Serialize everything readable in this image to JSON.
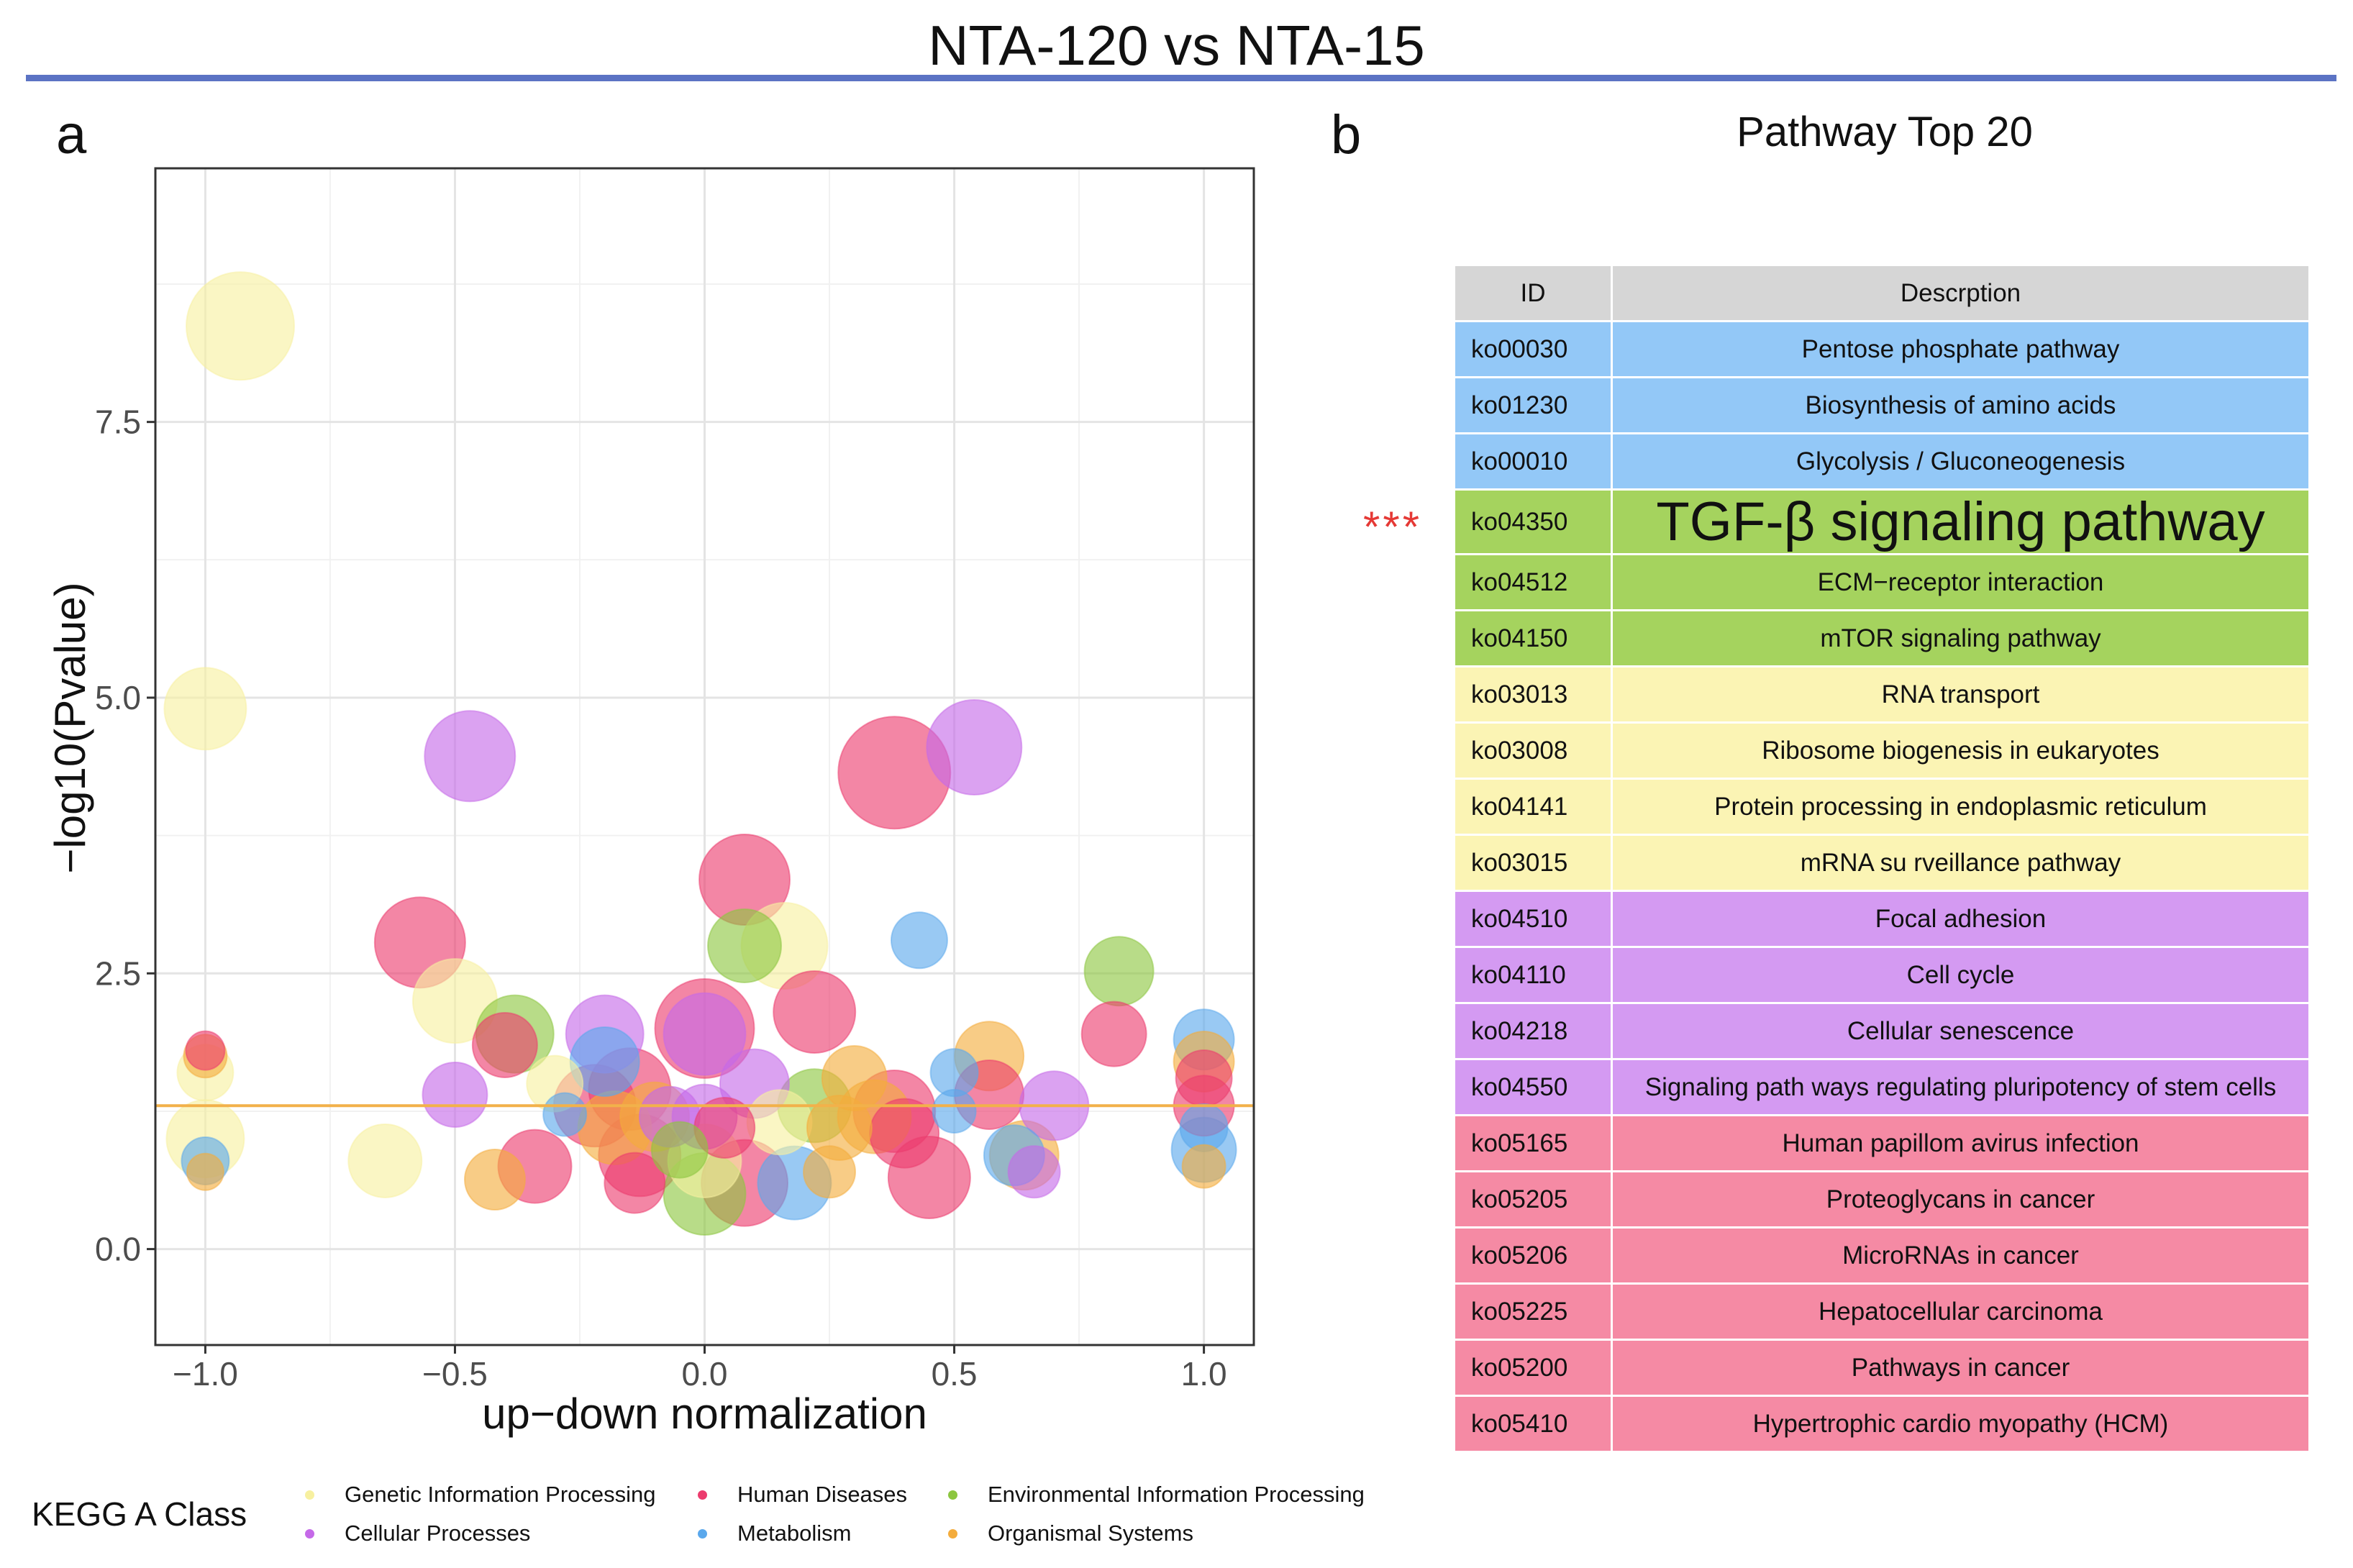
{
  "title": "NTA-120 vs NTA-15",
  "panel_a_label": "a",
  "panel_b_label": "b",
  "chart_data": {
    "type": "scatter",
    "xlabel": "up−down normalization",
    "ylabel": "−log10(Pvalue)",
    "xlim": [
      -1.1,
      1.1
    ],
    "ylim": [
      -0.87,
      9.8
    ],
    "x_ticks": [
      -1.0,
      -0.5,
      0.0,
      0.5,
      1.0
    ],
    "x_tick_labels": [
      "−1.0",
      "−0.5",
      "0.0",
      "0.5",
      "1.0"
    ],
    "y_ticks": [
      0.0,
      2.5,
      5.0,
      7.5
    ],
    "y_tick_labels": [
      "0.0",
      "2.5",
      "5.0",
      "7.5"
    ],
    "threshold_y": 1.3,
    "threshold_color": "#f2b14a",
    "grid": true,
    "class_colors": {
      "Genetic Information Processing": "#f7f0a0",
      "Human Diseases": "#ec3c6e",
      "Environmental Information Processing": "#8cc63f",
      "Cellular Processes": "#c569e8",
      "Metabolism": "#5aa8ec",
      "Organismal Systems": "#f4ac3c"
    },
    "points": [
      {
        "x": -0.93,
        "y": 8.37,
        "s": 5,
        "c": "Genetic Information Processing"
      },
      {
        "x": -1.0,
        "y": 4.9,
        "s": 3.8,
        "c": "Genetic Information Processing"
      },
      {
        "x": -1.0,
        "y": 1.0,
        "s": 3.6,
        "c": "Genetic Information Processing"
      },
      {
        "x": -1.0,
        "y": 1.6,
        "s": 2.6,
        "c": "Genetic Information Processing"
      },
      {
        "x": -1.0,
        "y": 1.8,
        "s": 1.8,
        "c": "Human Diseases"
      },
      {
        "x": -1.0,
        "y": 1.75,
        "s": 2.0,
        "c": "Organismal Systems"
      },
      {
        "x": -1.0,
        "y": 0.8,
        "s": 2.2,
        "c": "Metabolism"
      },
      {
        "x": -1.0,
        "y": 0.7,
        "s": 1.7,
        "c": "Organismal Systems"
      },
      {
        "x": -0.64,
        "y": 0.8,
        "s": 3.4,
        "c": "Genetic Information Processing"
      },
      {
        "x": -0.57,
        "y": 2.78,
        "s": 4.2,
        "c": "Human Diseases"
      },
      {
        "x": -0.5,
        "y": 2.25,
        "s": 3.9,
        "c": "Genetic Information Processing"
      },
      {
        "x": -0.47,
        "y": 4.47,
        "s": 4.2,
        "c": "Cellular Processes"
      },
      {
        "x": -0.5,
        "y": 1.4,
        "s": 3.0,
        "c": "Cellular Processes"
      },
      {
        "x": -0.42,
        "y": 0.63,
        "s": 2.8,
        "c": "Organismal Systems"
      },
      {
        "x": -0.38,
        "y": 1.95,
        "s": 3.6,
        "c": "Environmental Information Processing"
      },
      {
        "x": -0.4,
        "y": 1.85,
        "s": 3.0,
        "c": "Human Diseases"
      },
      {
        "x": -0.34,
        "y": 0.75,
        "s": 3.4,
        "c": "Human Diseases"
      },
      {
        "x": -0.3,
        "y": 1.5,
        "s": 2.6,
        "c": "Genetic Information Processing"
      },
      {
        "x": -0.28,
        "y": 1.22,
        "s": 2.0,
        "c": "Metabolism"
      },
      {
        "x": -0.22,
        "y": 1.3,
        "s": 3.8,
        "c": "Human Diseases"
      },
      {
        "x": -0.2,
        "y": 1.95,
        "s": 3.6,
        "c": "Cellular Processes"
      },
      {
        "x": -0.2,
        "y": 1.7,
        "s": 3.2,
        "c": "Metabolism"
      },
      {
        "x": -0.18,
        "y": 1.1,
        "s": 3.4,
        "c": "Organismal Systems"
      },
      {
        "x": -0.15,
        "y": 1.45,
        "s": 3.8,
        "c": "Human Diseases"
      },
      {
        "x": -0.13,
        "y": 0.85,
        "s": 3.8,
        "c": "Human Diseases"
      },
      {
        "x": -0.14,
        "y": 0.6,
        "s": 2.8,
        "c": "Human Diseases"
      },
      {
        "x": -0.1,
        "y": 1.2,
        "s": 3.2,
        "c": "Organismal Systems"
      },
      {
        "x": -0.07,
        "y": 1.2,
        "s": 2.8,
        "c": "Cellular Processes"
      },
      {
        "x": -0.05,
        "y": 0.9,
        "s": 2.6,
        "c": "Environmental Information Processing"
      },
      {
        "x": 0.0,
        "y": 2.0,
        "s": 4.6,
        "c": "Human Diseases"
      },
      {
        "x": 0.0,
        "y": 1.95,
        "s": 3.8,
        "c": "Cellular Processes"
      },
      {
        "x": 0.0,
        "y": 1.2,
        "s": 3.0,
        "c": "Cellular Processes"
      },
      {
        "x": 0.0,
        "y": 0.5,
        "s": 3.8,
        "c": "Environmental Information Processing"
      },
      {
        "x": 0.0,
        "y": 0.8,
        "s": 3.4,
        "c": "Genetic Information Processing"
      },
      {
        "x": 0.04,
        "y": 1.1,
        "s": 2.8,
        "c": "Human Diseases"
      },
      {
        "x": 0.08,
        "y": 3.35,
        "s": 4.2,
        "c": "Human Diseases"
      },
      {
        "x": 0.08,
        "y": 0.6,
        "s": 4.0,
        "c": "Human Diseases"
      },
      {
        "x": 0.1,
        "y": 1.5,
        "s": 3.2,
        "c": "Cellular Processes"
      },
      {
        "x": 0.08,
        "y": 2.75,
        "s": 3.4,
        "c": "Environmental Information Processing"
      },
      {
        "x": 0.16,
        "y": 2.75,
        "s": 4.0,
        "c": "Genetic Information Processing"
      },
      {
        "x": 0.15,
        "y": 1.15,
        "s": 3.0,
        "c": "Genetic Information Processing"
      },
      {
        "x": 0.18,
        "y": 0.6,
        "s": 3.4,
        "c": "Metabolism"
      },
      {
        "x": 0.22,
        "y": 1.3,
        "s": 3.4,
        "c": "Environmental Information Processing"
      },
      {
        "x": 0.22,
        "y": 2.15,
        "s": 3.8,
        "c": "Human Diseases"
      },
      {
        "x": 0.25,
        "y": 0.7,
        "s": 2.4,
        "c": "Organismal Systems"
      },
      {
        "x": 0.27,
        "y": 1.1,
        "s": 3.0,
        "c": "Organismal Systems"
      },
      {
        "x": 0.3,
        "y": 1.55,
        "s": 3.0,
        "c": "Organismal Systems"
      },
      {
        "x": 0.34,
        "y": 1.2,
        "s": 3.4,
        "c": "Organismal Systems"
      },
      {
        "x": 0.38,
        "y": 4.32,
        "s": 5.2,
        "c": "Human Diseases"
      },
      {
        "x": 0.38,
        "y": 1.25,
        "s": 3.8,
        "c": "Human Diseases"
      },
      {
        "x": 0.4,
        "y": 1.05,
        "s": 3.2,
        "c": "Human Diseases"
      },
      {
        "x": 0.43,
        "y": 2.8,
        "s": 2.6,
        "c": "Metabolism"
      },
      {
        "x": 0.45,
        "y": 0.65,
        "s": 3.8,
        "c": "Human Diseases"
      },
      {
        "x": 0.5,
        "y": 1.6,
        "s": 2.2,
        "c": "Metabolism"
      },
      {
        "x": 0.5,
        "y": 1.25,
        "s": 2.0,
        "c": "Metabolism"
      },
      {
        "x": 0.54,
        "y": 4.55,
        "s": 4.4,
        "c": "Cellular Processes"
      },
      {
        "x": 0.57,
        "y": 1.75,
        "s": 3.2,
        "c": "Organismal Systems"
      },
      {
        "x": 0.57,
        "y": 1.4,
        "s": 3.2,
        "c": "Human Diseases"
      },
      {
        "x": 0.62,
        "y": 0.85,
        "s": 2.8,
        "c": "Metabolism"
      },
      {
        "x": 0.64,
        "y": 0.85,
        "s": 3.2,
        "c": "Organismal Systems"
      },
      {
        "x": 0.66,
        "y": 0.7,
        "s": 2.4,
        "c": "Cellular Processes"
      },
      {
        "x": 0.7,
        "y": 1.3,
        "s": 3.2,
        "c": "Cellular Processes"
      },
      {
        "x": 0.83,
        "y": 2.52,
        "s": 3.2,
        "c": "Environmental Information Processing"
      },
      {
        "x": 0.82,
        "y": 1.95,
        "s": 3.0,
        "c": "Human Diseases"
      },
      {
        "x": 1.0,
        "y": 1.9,
        "s": 2.8,
        "c": "Metabolism"
      },
      {
        "x": 1.0,
        "y": 1.7,
        "s": 2.8,
        "c": "Organismal Systems"
      },
      {
        "x": 1.0,
        "y": 1.55,
        "s": 2.6,
        "c": "Human Diseases"
      },
      {
        "x": 1.0,
        "y": 1.3,
        "s": 2.8,
        "c": "Human Diseases"
      },
      {
        "x": 1.0,
        "y": 0.9,
        "s": 3.0,
        "c": "Metabolism"
      },
      {
        "x": 1.0,
        "y": 0.75,
        "s": 2.0,
        "c": "Organismal Systems"
      },
      {
        "x": 1.0,
        "y": 1.1,
        "s": 2.2,
        "c": "Metabolism"
      }
    ]
  },
  "table": {
    "title": "Pathway Top 20",
    "header_id": "ID",
    "header_desc": "Descrption",
    "highlight_marker": "***",
    "rows": [
      {
        "id": "ko00030",
        "desc": "Pentose phosphate pathway",
        "color": "#93c8f7"
      },
      {
        "id": "ko01230",
        "desc": "Biosynthesis of amino acids",
        "color": "#93c8f7"
      },
      {
        "id": "ko00010",
        "desc": "Glycolysis / Gluconeogenesis",
        "color": "#93c8f7"
      },
      {
        "id": "ko04350",
        "desc": "TGF-β signaling pathway",
        "color": "#a5d35e",
        "big": true
      },
      {
        "id": "ko04512",
        "desc": "ECM−receptor interaction",
        "color": "#a5d35e"
      },
      {
        "id": "ko04150",
        "desc": "mTOR signaling pathway",
        "color": "#a5d35e"
      },
      {
        "id": "ko03013",
        "desc": "RNA transport",
        "color": "#fbf4b4"
      },
      {
        "id": "ko03008",
        "desc": "Ribosome biogenesis in eukaryotes",
        "color": "#fbf4b4"
      },
      {
        "id": "ko04141",
        "desc": "Protein processing in endoplasmic reticulum",
        "color": "#fbf4b4"
      },
      {
        "id": "ko03015",
        "desc": "mRNA su rveillance pathway",
        "color": "#fbf4b4"
      },
      {
        "id": "ko04510",
        "desc": "Focal adhesion",
        "color": "#d49af2"
      },
      {
        "id": "ko04110",
        "desc": "Cell cycle",
        "color": "#d49af2"
      },
      {
        "id": "ko04218",
        "desc": "Cellular senescence",
        "color": "#d49af2"
      },
      {
        "id": "ko04550",
        "desc": "Signaling path ways regulating pluripotency of stem cells",
        "color": "#d49af2"
      },
      {
        "id": "ko05165",
        "desc": "Human papillom avirus infection",
        "color": "#f58aa4"
      },
      {
        "id": "ko05205",
        "desc": "Proteoglycans in cancer",
        "color": "#f58aa4"
      },
      {
        "id": "ko05206",
        "desc": "MicroRNAs in cancer",
        "color": "#f58aa4"
      },
      {
        "id": "ko05225",
        "desc": "Hepatocellular carcinoma",
        "color": "#f58aa4"
      },
      {
        "id": "ko05200",
        "desc": "Pathways in cancer",
        "color": "#f58aa4"
      },
      {
        "id": "ko05410",
        "desc": "Hypertrophic cardio myopathy (HCM)",
        "color": "#f58aa4"
      }
    ]
  },
  "legend": {
    "title": "KEGG A Class",
    "items": [
      {
        "label": "Genetic Information Processing",
        "color": "#f7f0a0"
      },
      {
        "label": "Human Diseases",
        "color": "#ec3c6e"
      },
      {
        "label": "Environmental Information Processing",
        "color": "#8cc63f"
      },
      {
        "label": "Cellular Processes",
        "color": "#c569e8"
      },
      {
        "label": "Metabolism",
        "color": "#5aa8ec"
      },
      {
        "label": "Organismal Systems",
        "color": "#f4ac3c"
      }
    ]
  }
}
